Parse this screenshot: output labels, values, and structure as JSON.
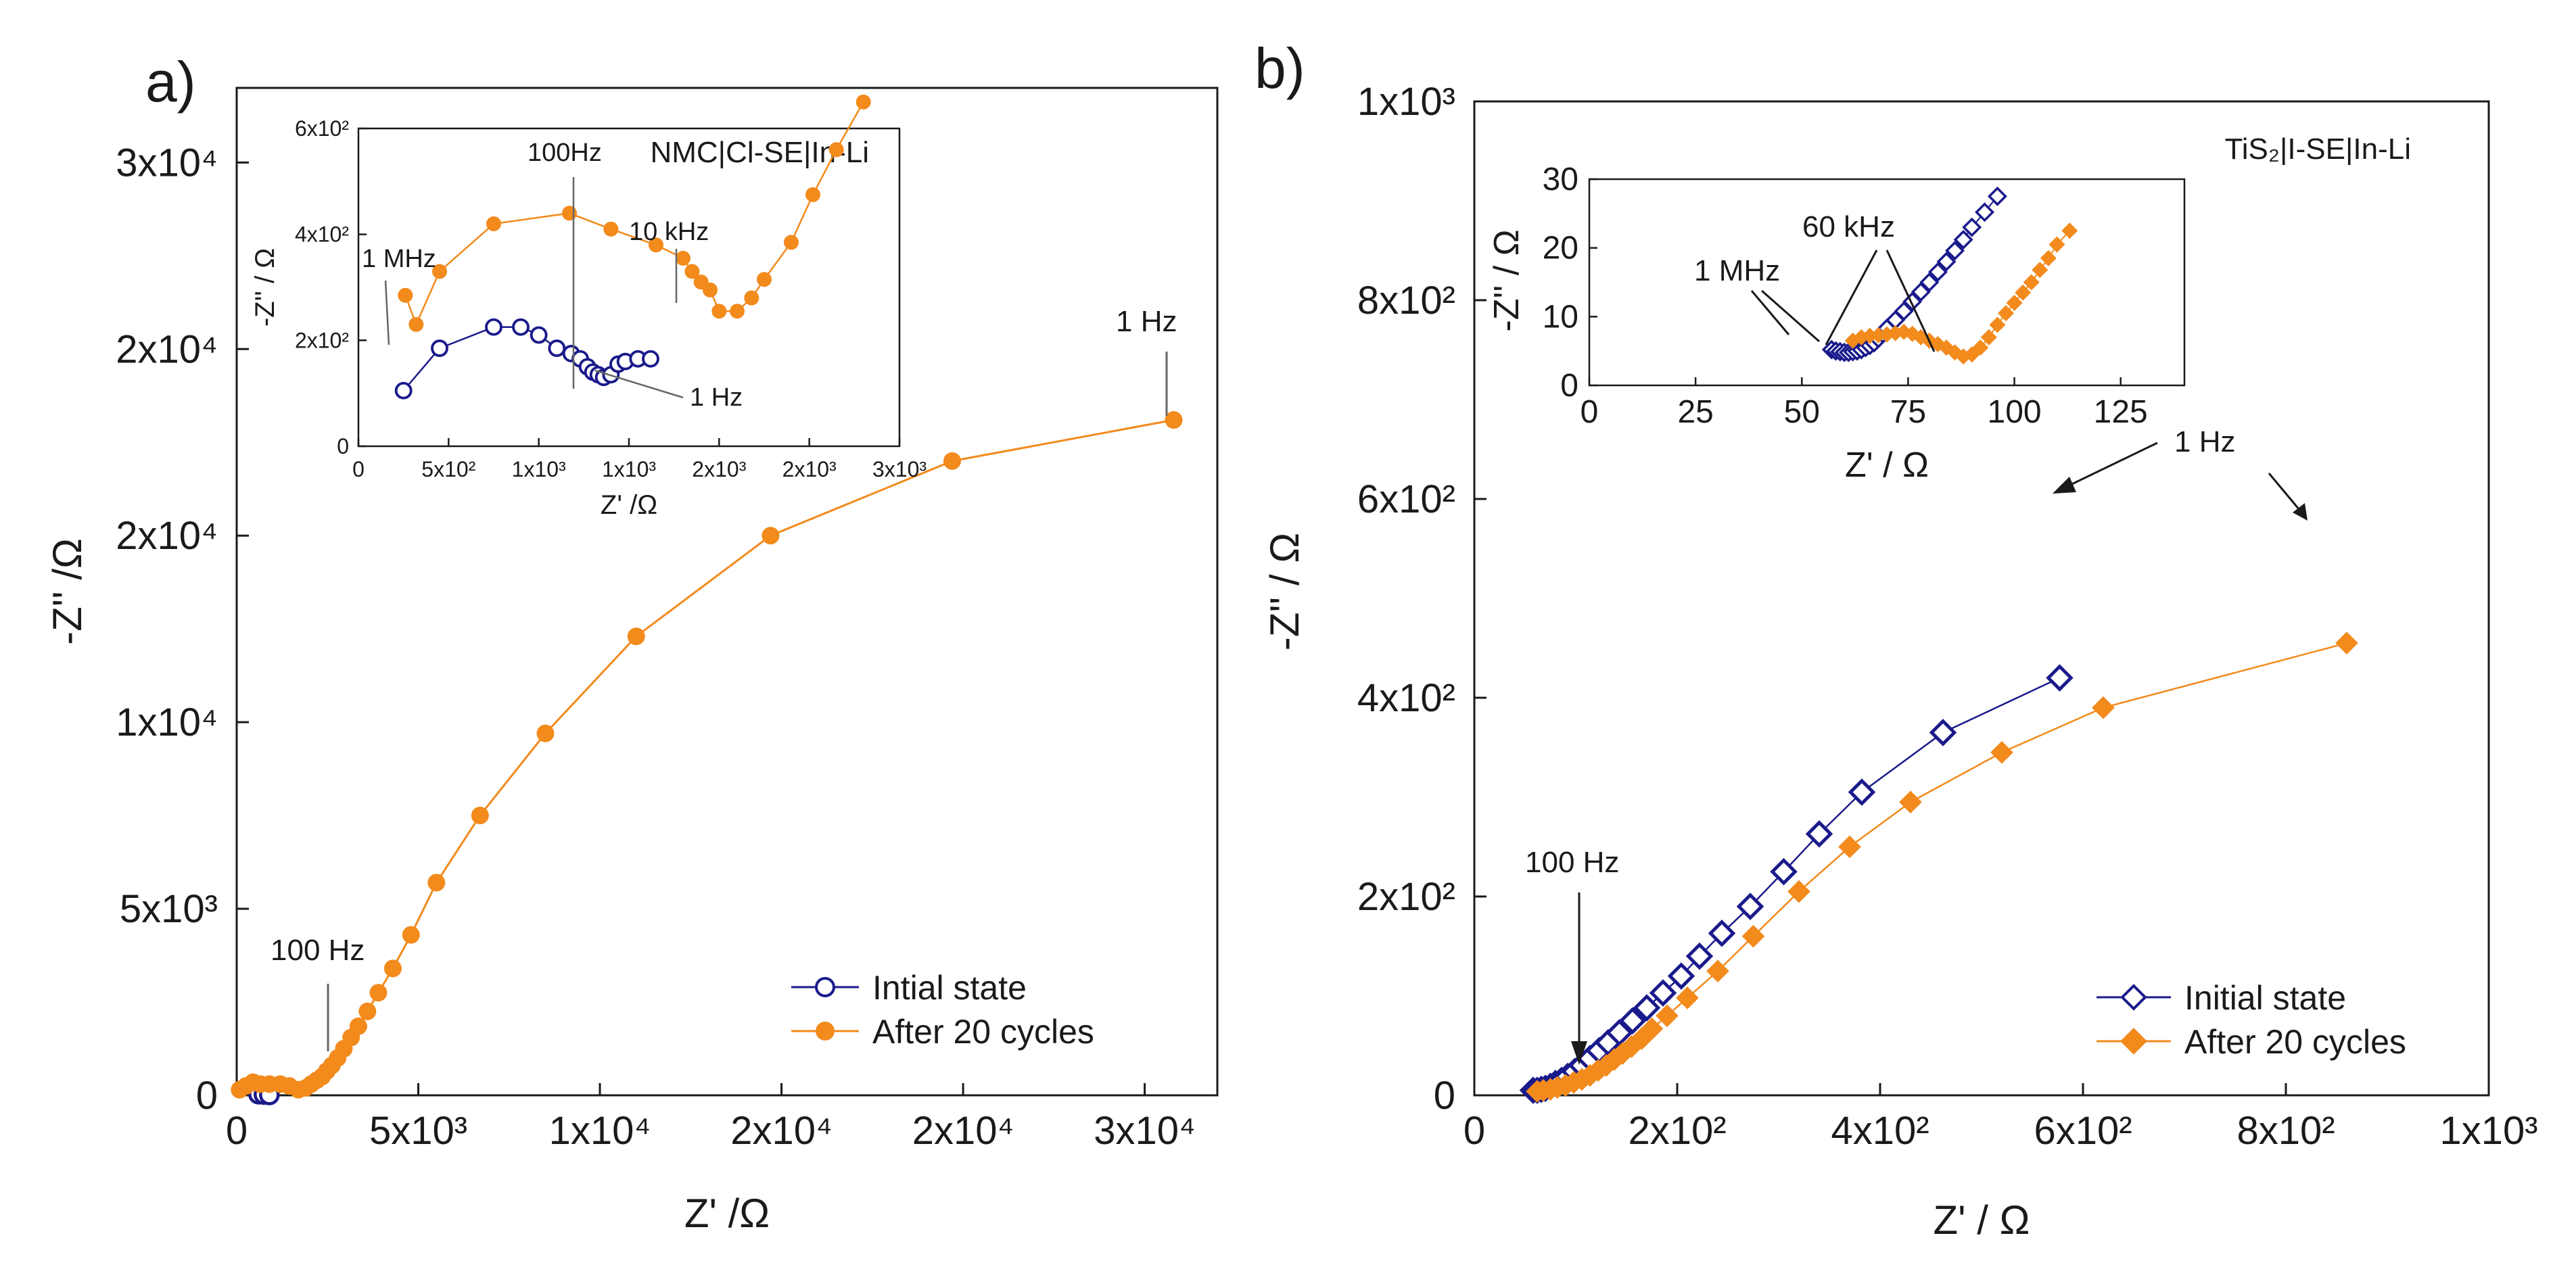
{
  "chart_data": [
    {
      "id": "a",
      "type": "scatter",
      "panel_label": "a)",
      "xlabel": "Z' /Ω",
      "ylabel": "-Z'' /Ω",
      "xlim": [
        0,
        27000
      ],
      "ylim": [
        0,
        27000
      ],
      "x_ticks": [
        0,
        5000,
        10000,
        15000,
        20000,
        25000
      ],
      "x_tick_labels": [
        "0",
        "5x10³",
        "1x10⁴",
        "2x10⁴",
        "2x10⁴",
        "3x10⁴"
      ],
      "y_ticks": [
        0,
        5000,
        10000,
        15000,
        20000,
        25000
      ],
      "y_tick_labels": [
        "0",
        "5x10³",
        "1x10⁴",
        "2x10⁴",
        "2x10⁴",
        "3x10⁴"
      ],
      "legend": [
        "Intial state",
        "After 20 cycles"
      ],
      "annotations": [
        "100 Hz",
        "1 Hz"
      ],
      "series": [
        {
          "name": "Intial state",
          "color": "#1a1a8c",
          "marker": "open-circle",
          "x": [
            600,
            750,
            900
          ],
          "y": [
            30,
            20,
            10
          ]
        },
        {
          "name": "After 20 cycles",
          "color": "#f28a1c",
          "marker": "filled-circle",
          "x": [
            80,
            250,
            450,
            650,
            900,
            1200,
            1450,
            1700,
            1900,
            2050,
            2200,
            2350,
            2480,
            2620,
            2780,
            2950,
            3150,
            3350,
            3600,
            3900,
            4300,
            4800,
            5500,
            6700,
            8500,
            11000,
            14700,
            19700,
            25800
          ],
          "y": [
            150,
            250,
            350,
            300,
            300,
            300,
            250,
            150,
            200,
            300,
            400,
            500,
            650,
            800,
            1000,
            1250,
            1550,
            1850,
            2250,
            2750,
            3400,
            4300,
            5700,
            7500,
            9700,
            12300,
            15000,
            17000,
            18100
          ]
        }
      ]
    },
    {
      "id": "a-inset",
      "type": "scatter",
      "title": "NMC|Cl-SE|In-Li",
      "xlabel": "Z' /Ω",
      "ylabel": "-Z'' / Ω",
      "xlim": [
        0,
        3000
      ],
      "ylim": [
        0,
        600
      ],
      "x_ticks": [
        0,
        500,
        1000,
        1500,
        2000,
        2500,
        3000
      ],
      "x_tick_labels": [
        "0",
        "5x10²",
        "1x10³",
        "1x10³",
        "2x10³",
        "2x10³",
        "3x10³"
      ],
      "y_ticks": [
        0,
        200,
        400,
        600
      ],
      "y_tick_labels": [
        "0",
        "2x10²",
        "4x10²",
        "6x10²"
      ],
      "annotations": [
        "1 MHz",
        "100Hz",
        "10 kHz",
        "1 Hz"
      ],
      "series": [
        {
          "name": "Intial state",
          "color": "#1a1a8c",
          "marker": "open-circle",
          "x": [
            250,
            450,
            750,
            900,
            1000,
            1100,
            1180,
            1230,
            1270,
            1300,
            1330,
            1360,
            1400,
            1440,
            1480,
            1550,
            1620
          ],
          "y": [
            105,
            185,
            225,
            225,
            210,
            185,
            175,
            165,
            150,
            140,
            135,
            130,
            135,
            155,
            160,
            165,
            165
          ]
        },
        {
          "name": "After 20 cycles",
          "color": "#f28a1c",
          "marker": "filled-circle",
          "x": [
            260,
            320,
            450,
            750,
            1170,
            1400,
            1650,
            1800,
            1850,
            1900,
            1950,
            2000,
            2100,
            2180,
            2250,
            2400,
            2520,
            2650,
            2800
          ],
          "y": [
            285,
            230,
            330,
            420,
            440,
            410,
            380,
            355,
            330,
            310,
            295,
            255,
            255,
            280,
            315,
            385,
            475,
            560,
            650
          ]
        }
      ]
    },
    {
      "id": "b",
      "type": "scatter",
      "panel_label": "b)",
      "title": "TiS₂|I-SE|In-Li",
      "xlabel": "Z' / Ω",
      "ylabel": "-Z'' / Ω",
      "xlim": [
        0,
        1000
      ],
      "ylim": [
        0,
        1000
      ],
      "x_ticks": [
        0,
        200,
        400,
        600,
        800,
        1000
      ],
      "x_tick_labels": [
        "0",
        "2x10²",
        "4x10²",
        "6x10²",
        "8x10²",
        "1x10³"
      ],
      "y_ticks": [
        0,
        200,
        400,
        600,
        800,
        1000
      ],
      "y_tick_labels": [
        "0",
        "2x10²",
        "4x10²",
        "6x10²",
        "8x10²",
        "1x10³"
      ],
      "legend": [
        "Initial state",
        "After 20 cycles"
      ],
      "annotations": [
        "100 Hz",
        "1 Hz"
      ],
      "series": [
        {
          "name": "Initial state",
          "color": "#1a1a8c",
          "marker": "open-diamond",
          "x": [
            58,
            62,
            66,
            70,
            75,
            80,
            86,
            92,
            99,
            106,
            114,
            123,
            132,
            143,
            156,
            170,
            186,
            204,
            222,
            244,
            272,
            305,
            340,
            382,
            462,
            577
          ],
          "y": [
            5,
            5,
            6,
            7,
            9,
            12,
            15,
            19,
            24,
            30,
            37,
            45,
            53,
            63,
            75,
            88,
            103,
            120,
            140,
            163,
            190,
            225,
            263,
            305,
            365,
            420
          ]
        },
        {
          "name": "After 20 cycles",
          "color": "#f28a1c",
          "marker": "filled-diamond",
          "x": [
            62,
            68,
            75,
            82,
            90,
            98,
            106,
            114,
            122,
            130,
            138,
            146,
            155,
            165,
            175,
            190,
            210,
            240,
            275,
            320,
            370,
            430,
            520,
            620,
            860
          ],
          "y": [
            4,
            5,
            6,
            8,
            10,
            13,
            16,
            20,
            25,
            30,
            36,
            42,
            49,
            57,
            67,
            80,
            98,
            125,
            160,
            205,
            250,
            295,
            345,
            390,
            455
          ]
        }
      ]
    },
    {
      "id": "b-inset",
      "type": "scatter",
      "xlabel": "Z' / Ω",
      "ylabel": "-Z'' / Ω",
      "xlim": [
        0,
        140
      ],
      "ylim": [
        0,
        30
      ],
      "x_ticks": [
        0,
        25,
        50,
        75,
        100,
        125
      ],
      "x_tick_labels": [
        "0",
        "25",
        "50",
        "75",
        "100",
        "125"
      ],
      "y_ticks": [
        0,
        10,
        20,
        30
      ],
      "y_tick_labels": [
        "0",
        "10",
        "20",
        "30"
      ],
      "annotations": [
        "60 kHz",
        "1 MHz"
      ],
      "series": [
        {
          "name": "Initial state",
          "color": "#1a1a8c",
          "marker": "open-diamond",
          "x": [
            57,
            58,
            59,
            60,
            61,
            62,
            63,
            64,
            65,
            66,
            67,
            68,
            69,
            70,
            72,
            74,
            76,
            78,
            80,
            82,
            84,
            86,
            88,
            90,
            93,
            96
          ],
          "y": [
            5.2,
            5.0,
            4.9,
            4.8,
            4.8,
            4.9,
            5.0,
            5.2,
            5.5,
            5.8,
            6.2,
            6.8,
            7.5,
            8.3,
            9.5,
            10.8,
            12.2,
            13.6,
            15.0,
            16.5,
            18.0,
            19.6,
            21.2,
            23.0,
            25.2,
            27.5
          ]
        },
        {
          "name": "After 20 cycles",
          "color": "#f28a1c",
          "marker": "filled-diamond",
          "x": [
            62,
            64,
            66,
            68,
            70,
            72,
            74,
            76,
            78,
            80,
            82,
            84,
            86,
            88,
            90,
            92,
            94,
            96,
            98,
            100,
            102,
            104,
            106,
            108,
            110,
            113
          ],
          "y": [
            6.5,
            7.0,
            7.2,
            7.3,
            7.4,
            7.6,
            7.8,
            7.5,
            7.0,
            6.5,
            6.0,
            5.5,
            4.8,
            4.2,
            4.5,
            5.5,
            7.0,
            8.8,
            10.5,
            12.0,
            13.5,
            15.0,
            16.8,
            18.5,
            20.5,
            22.5
          ]
        }
      ]
    }
  ]
}
